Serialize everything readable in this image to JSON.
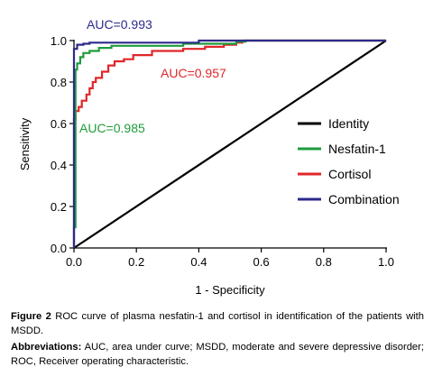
{
  "chart_data": {
    "type": "line",
    "title": "",
    "xlabel": "1 - Specificity",
    "ylabel": "Sensitivity",
    "xlim": [
      0,
      1
    ],
    "ylim": [
      0,
      1
    ],
    "x_ticks": [
      "0.0",
      "0.2",
      "0.4",
      "0.6",
      "0.8",
      "1.0"
    ],
    "y_ticks": [
      "0.0",
      "0.2",
      "0.4",
      "0.6",
      "0.8",
      "1.0"
    ],
    "legend_position": "right-middle",
    "series": [
      {
        "name": "Identity",
        "color": "#000000",
        "points": [
          [
            0,
            0
          ],
          [
            1,
            1
          ]
        ]
      },
      {
        "name": "Nesfatin-1",
        "color": "#1e9c3c",
        "auc_label": "AUC=0.985",
        "points": [
          [
            0,
            0
          ],
          [
            0,
            0.1
          ],
          [
            0.005,
            0.1
          ],
          [
            0.005,
            0.86
          ],
          [
            0.01,
            0.86
          ],
          [
            0.01,
            0.89
          ],
          [
            0.02,
            0.89
          ],
          [
            0.02,
            0.92
          ],
          [
            0.03,
            0.92
          ],
          [
            0.03,
            0.94
          ],
          [
            0.05,
            0.94
          ],
          [
            0.05,
            0.95
          ],
          [
            0.08,
            0.95
          ],
          [
            0.08,
            0.965
          ],
          [
            0.12,
            0.965
          ],
          [
            0.12,
            0.975
          ],
          [
            0.35,
            0.975
          ],
          [
            0.35,
            0.985
          ],
          [
            0.52,
            0.985
          ],
          [
            0.52,
            0.995
          ],
          [
            0.55,
            0.995
          ],
          [
            0.55,
            1
          ],
          [
            1,
            1
          ]
        ]
      },
      {
        "name": "Cortisol",
        "color": "#e0262a",
        "auc_label": "AUC=0.957",
        "points": [
          [
            0,
            0
          ],
          [
            0,
            0.62
          ],
          [
            0.005,
            0.62
          ],
          [
            0.005,
            0.66
          ],
          [
            0.015,
            0.66
          ],
          [
            0.015,
            0.68
          ],
          [
            0.025,
            0.68
          ],
          [
            0.025,
            0.71
          ],
          [
            0.04,
            0.71
          ],
          [
            0.04,
            0.74
          ],
          [
            0.05,
            0.74
          ],
          [
            0.05,
            0.77
          ],
          [
            0.06,
            0.77
          ],
          [
            0.06,
            0.8
          ],
          [
            0.07,
            0.8
          ],
          [
            0.07,
            0.82
          ],
          [
            0.09,
            0.82
          ],
          [
            0.09,
            0.85
          ],
          [
            0.11,
            0.85
          ],
          [
            0.11,
            0.88
          ],
          [
            0.13,
            0.88
          ],
          [
            0.13,
            0.9
          ],
          [
            0.16,
            0.9
          ],
          [
            0.16,
            0.91
          ],
          [
            0.19,
            0.91
          ],
          [
            0.19,
            0.93
          ],
          [
            0.25,
            0.93
          ],
          [
            0.25,
            0.95
          ],
          [
            0.35,
            0.95
          ],
          [
            0.35,
            0.96
          ],
          [
            0.42,
            0.96
          ],
          [
            0.42,
            0.97
          ],
          [
            0.48,
            0.97
          ],
          [
            0.48,
            0.98
          ],
          [
            0.52,
            0.98
          ],
          [
            0.52,
            0.99
          ],
          [
            0.54,
            0.99
          ],
          [
            0.54,
            1
          ],
          [
            1,
            1
          ]
        ]
      },
      {
        "name": "Combination",
        "color": "#2c2a8c",
        "auc_label": "AUC=0.993",
        "points": [
          [
            0,
            0
          ],
          [
            0,
            0.96
          ],
          [
            0.01,
            0.96
          ],
          [
            0.01,
            0.98
          ],
          [
            0.03,
            0.98
          ],
          [
            0.03,
            0.985
          ],
          [
            0.05,
            0.985
          ],
          [
            0.05,
            0.99
          ],
          [
            0.4,
            0.99
          ],
          [
            0.4,
            1
          ],
          [
            1,
            1
          ]
        ]
      }
    ]
  },
  "caption": {
    "figure_label": "Figure 2",
    "figure_text": " ROC curve of plasma nesfatin-1 and cortisol in identification of the patients with MSDD.",
    "abbrev_label": "Abbreviations:",
    "abbrev_text": " AUC, area under curve; MSDD, moderate and severe depressive disorder; ROC, Receiver operating characteristic."
  }
}
